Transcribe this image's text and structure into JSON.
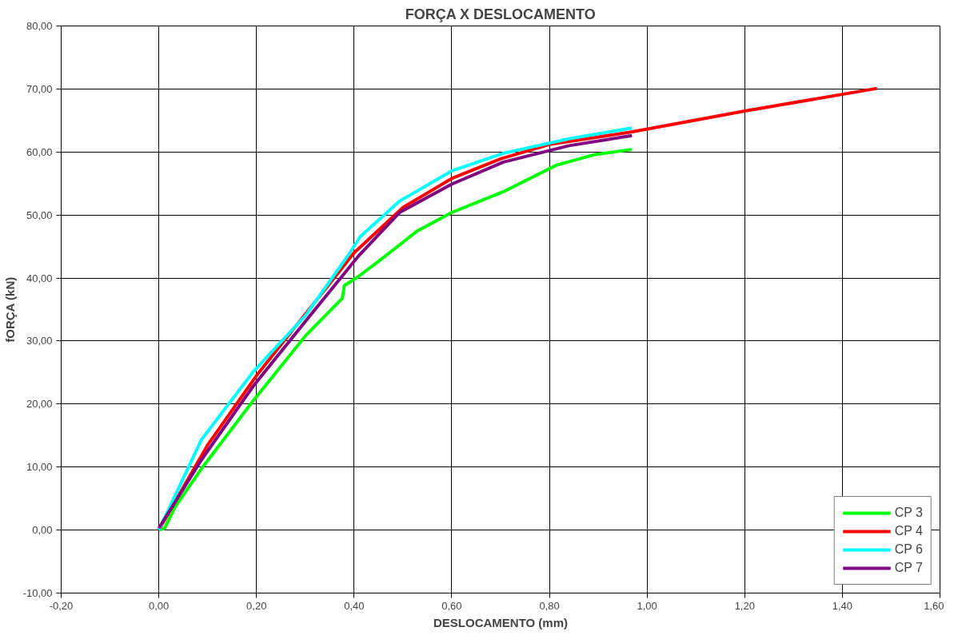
{
  "chart_data": {
    "type": "line",
    "title": "FORÇA X DESLOCAMENTO",
    "xlabel": "DESLOCAMENTO (mm)",
    "ylabel": "fORÇA (kN)",
    "xlim": [
      -0.2,
      1.6
    ],
    "ylim": [
      -10,
      80
    ],
    "xticks": [
      {
        "value": -0.2,
        "label": "-0,20"
      },
      {
        "value": 0,
        "label": "0,00"
      },
      {
        "value": 0.2,
        "label": "0,20"
      },
      {
        "value": 0.4,
        "label": "0,40"
      },
      {
        "value": 0.6,
        "label": "0,60"
      },
      {
        "value": 0.8,
        "label": "0,80"
      },
      {
        "value": 1.0,
        "label": "1,00"
      },
      {
        "value": 1.2,
        "label": "1,20"
      },
      {
        "value": 1.4,
        "label": "1,40"
      },
      {
        "value": 1.6,
        "label": "1,60"
      }
    ],
    "yticks": [
      {
        "value": -10,
        "label": "-10,00"
      },
      {
        "value": 0,
        "label": "0,00"
      },
      {
        "value": 10,
        "label": "10,00"
      },
      {
        "value": 20,
        "label": "20,00"
      },
      {
        "value": 30,
        "label": "30,00"
      },
      {
        "value": 40,
        "label": "40,00"
      },
      {
        "value": 50,
        "label": "50,00"
      },
      {
        "value": 60,
        "label": "60,00"
      },
      {
        "value": 70,
        "label": "70,00"
      },
      {
        "value": 80,
        "label": "80,00"
      }
    ],
    "grid": true,
    "legend": "bottom right",
    "marker": "none",
    "line_style": "solid",
    "series": [
      {
        "name": "CP 3",
        "color": "#00ff00",
        "x": [
          0.0,
          0.012,
          0.033,
          0.087,
          0.193,
          0.3,
          0.376,
          0.38,
          0.408,
          0.456,
          0.53,
          0.6,
          0.706,
          0.814,
          0.894,
          0.969
        ],
        "values": [
          0,
          0.3,
          3.6,
          9.7,
          20.5,
          30.8,
          36.8,
          38.8,
          40.2,
          43,
          47.5,
          50.4,
          53.7,
          57.9,
          59.6,
          60.4
        ]
      },
      {
        "name": "CP 4",
        "color": "#ff0000",
        "x": [
          0.0,
          0.1,
          0.2,
          0.4,
          0.5,
          0.6,
          0.7,
          0.8,
          0.97,
          1.2,
          1.471
        ],
        "values": [
          0,
          13.5,
          24.5,
          44,
          51.2,
          55.8,
          58.9,
          61.2,
          63.2,
          66.5,
          70.1
        ]
      },
      {
        "name": "CP 6",
        "color": "#00ffff",
        "x": [
          0.0,
          0.087,
          0.193,
          0.3,
          0.386,
          0.413,
          0.493,
          0.6,
          0.706,
          0.84,
          0.969
        ],
        "values": [
          0,
          14.3,
          25.1,
          34,
          43.4,
          46.6,
          52.2,
          57,
          59.8,
          62.1,
          63.8
        ]
      },
      {
        "name": "CP 7",
        "color": "#800080",
        "x": [
          0.0,
          0.087,
          0.193,
          0.3,
          0.408,
          0.493,
          0.6,
          0.706,
          0.84,
          0.969
        ],
        "values": [
          0.3,
          11.1,
          22.8,
          33.1,
          43.4,
          50.4,
          54.9,
          58.4,
          61,
          62.6
        ]
      }
    ]
  }
}
